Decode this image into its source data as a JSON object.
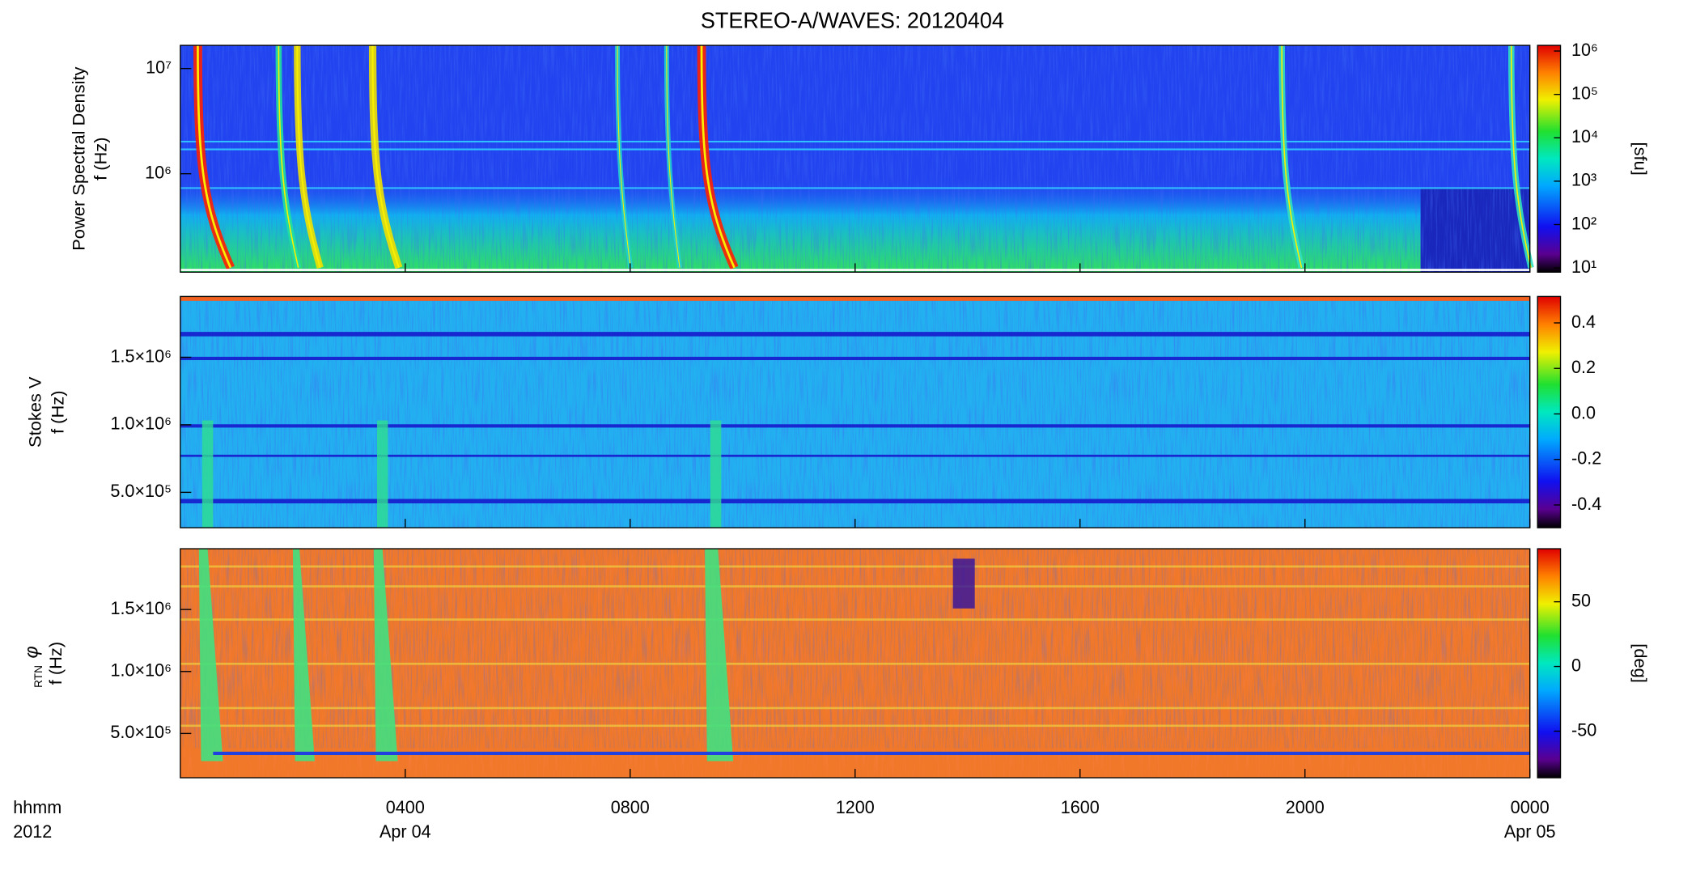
{
  "chart_data": [
    {
      "type": "heatmap",
      "title": "STEREO-A/WAVES: 20120404",
      "ylabel": [
        "Power Spectral Density",
        "f (Hz)"
      ],
      "ylog": true,
      "ylim": [
        116000,
        16600000
      ],
      "yticks": [
        {
          "value": 10000000,
          "label": "10⁷"
        },
        {
          "value": 1000000,
          "label": "10⁶"
        }
      ],
      "colorbar": {
        "label": "[sfu]",
        "log": true,
        "clim": [
          8,
          1350000
        ],
        "ticks": [
          {
            "value": 1000000,
            "label": "10⁶"
          },
          {
            "value": 100000,
            "label": "10⁵"
          },
          {
            "value": 10000,
            "label": "10⁴"
          },
          {
            "value": 1000,
            "label": "10³"
          },
          {
            "value": 100,
            "label": "10²"
          },
          {
            "value": 10,
            "label": "10¹"
          }
        ]
      }
    },
    {
      "type": "heatmap",
      "ylabel": [
        "Stokes V",
        "f (Hz)"
      ],
      "ylim": [
        238000,
        1950000
      ],
      "yticks": [
        {
          "value": 1500000,
          "label": "1.5×10⁶"
        },
        {
          "value": 1000000,
          "label": "1.0×10⁶"
        },
        {
          "value": 500000,
          "label": "5.0×10⁵"
        }
      ],
      "colorbar": {
        "clim": [
          -0.5,
          0.516
        ],
        "ticks": [
          0.4,
          0.2,
          {
            "value": 0,
            "label": "0.0"
          },
          -0.2,
          -0.4
        ]
      }
    },
    {
      "type": "heatmap",
      "ylabel_symbol": "φ",
      "ylabel_sub": "RTN",
      "ylabel": [
        "f (Hz)"
      ],
      "ylim": [
        143000,
        1990000
      ],
      "yticks": [
        {
          "value": 1500000,
          "label": "1.5×10⁶"
        },
        {
          "value": 1000000,
          "label": "1.0×10⁶"
        },
        {
          "value": 500000,
          "label": "5.0×10⁵"
        }
      ],
      "colorbar": {
        "label": "[deg]",
        "clim": [
          -86,
          91
        ],
        "ticks": [
          50,
          0,
          -50
        ]
      },
      "xlim": [
        0,
        24
      ],
      "xticks": [
        {
          "value": 4,
          "label": "0400"
        },
        {
          "value": 8,
          "label": "0800"
        },
        {
          "value": 12,
          "label": "1200"
        },
        {
          "value": 16,
          "label": "1600"
        },
        {
          "value": 20,
          "label": "2000"
        },
        {
          "value": 24,
          "label": "0000"
        }
      ],
      "date_labels": [
        {
          "value": 4,
          "label": "Apr 04"
        },
        {
          "value": 24,
          "label": "Apr 05"
        }
      ],
      "xlabel": [
        "hhmm",
        "2012"
      ]
    }
  ]
}
